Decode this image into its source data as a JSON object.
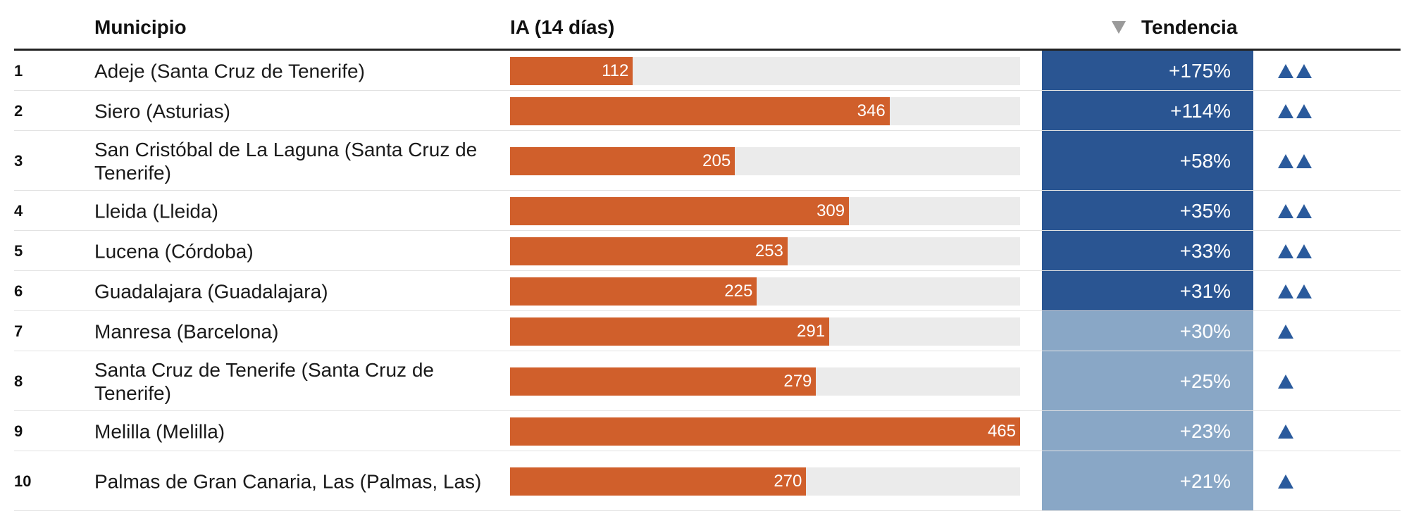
{
  "header": {
    "col_municipio": "Municipio",
    "col_ia": "IA (14 días)",
    "col_tendencia": "Tendencia"
  },
  "colors": {
    "bar": "#d05f2b",
    "track": "#ebebeb",
    "trend_strong": "#2a5592",
    "trend_mild": "#89a7c6",
    "arrow": "#2a5a9c"
  },
  "chart_data": {
    "type": "table",
    "columns": [
      "Municipio",
      "IA (14 días)",
      "Tendencia"
    ],
    "ia_max": 465,
    "sorted_by": "Tendencia",
    "rows": [
      {
        "rank": "1",
        "municipio": "Adeje (Santa Cruz de Tenerife)",
        "ia": 112,
        "ia_label": "112",
        "tendencia": "+175%",
        "arrows": 2
      },
      {
        "rank": "2",
        "municipio": "Siero (Asturias)",
        "ia": 346,
        "ia_label": "346",
        "tendencia": "+114%",
        "arrows": 2
      },
      {
        "rank": "3",
        "municipio": "San Cristóbal de La Laguna (Santa Cruz de Tenerife)",
        "ia": 205,
        "ia_label": "205",
        "tendencia": "+58%",
        "arrows": 2
      },
      {
        "rank": "4",
        "municipio": "Lleida (Lleida)",
        "ia": 309,
        "ia_label": "309",
        "tendencia": "+35%",
        "arrows": 2
      },
      {
        "rank": "5",
        "municipio": "Lucena (Córdoba)",
        "ia": 253,
        "ia_label": "253",
        "tendencia": "+33%",
        "arrows": 2
      },
      {
        "rank": "6",
        "municipio": "Guadalajara (Guadalajara)",
        "ia": 225,
        "ia_label": "225",
        "tendencia": "+31%",
        "arrows": 2
      },
      {
        "rank": "7",
        "municipio": "Manresa (Barcelona)",
        "ia": 291,
        "ia_label": "291",
        "tendencia": "+30%",
        "arrows": 1
      },
      {
        "rank": "8",
        "municipio": "Santa Cruz de Tenerife (Santa Cruz de Tenerife)",
        "ia": 279,
        "ia_label": "279",
        "tendencia": "+25%",
        "arrows": 1
      },
      {
        "rank": "9",
        "municipio": "Melilla (Melilla)",
        "ia": 465,
        "ia_label": "465",
        "tendencia": "+23%",
        "arrows": 1
      },
      {
        "rank": "10",
        "municipio": "Palmas de Gran Canaria, Las (Palmas, Las)",
        "ia": 270,
        "ia_label": "270",
        "tendencia": "+21%",
        "arrows": 1
      }
    ]
  }
}
